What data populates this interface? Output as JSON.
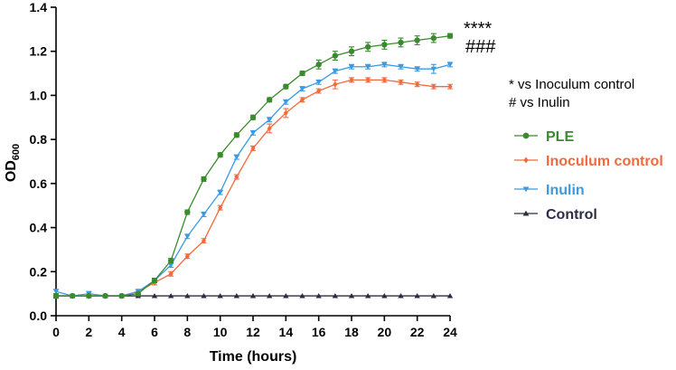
{
  "chart_data": {
    "type": "line",
    "title": "",
    "xlabel": "Time (hours)",
    "ylabel_main": "OD",
    "ylabel_sub": "600",
    "xlim": [
      0,
      24
    ],
    "ylim": [
      0.0,
      1.4
    ],
    "xticks": [
      0,
      2,
      4,
      6,
      8,
      10,
      12,
      14,
      16,
      18,
      20,
      22,
      24
    ],
    "xtick_labels": [
      "0",
      "2",
      "4",
      "6",
      "8",
      "10",
      "12",
      "14",
      "16",
      "18",
      "20",
      "22",
      "24"
    ],
    "yticks": [
      0.0,
      0.2,
      0.4,
      0.6,
      0.8,
      1.0,
      1.2,
      1.4
    ],
    "ytick_labels": [
      "0.0",
      "0.2",
      "0.4",
      "0.6",
      "0.8",
      "1.0",
      "1.2",
      "1.4"
    ],
    "x": [
      0,
      1,
      2,
      3,
      4,
      5,
      6,
      7,
      8,
      9,
      10,
      11,
      12,
      13,
      14,
      15,
      16,
      17,
      18,
      19,
      20,
      21,
      22,
      23,
      24
    ],
    "series": [
      {
        "name": "PLE",
        "color": "#3a8a2e",
        "marker": "circle",
        "values": [
          0.09,
          0.09,
          0.09,
          0.09,
          0.09,
          0.1,
          0.16,
          0.25,
          0.47,
          0.62,
          0.73,
          0.82,
          0.9,
          0.98,
          1.04,
          1.1,
          1.14,
          1.18,
          1.2,
          1.22,
          1.23,
          1.24,
          1.25,
          1.26,
          1.27
        ],
        "errors": [
          0.01,
          0.0,
          0.0,
          0.0,
          0.0,
          0.0,
          0.01,
          0.01,
          0.01,
          0.01,
          0.01,
          0.01,
          0.01,
          0.01,
          0.01,
          0.01,
          0.02,
          0.02,
          0.02,
          0.02,
          0.02,
          0.02,
          0.02,
          0.02,
          0.01
        ]
      },
      {
        "name": "Inoculum control",
        "color": "#f06a3c",
        "marker": "diamond",
        "values": [
          0.09,
          0.09,
          0.09,
          0.09,
          0.09,
          0.11,
          0.15,
          0.19,
          0.27,
          0.34,
          0.49,
          0.63,
          0.76,
          0.85,
          0.92,
          0.98,
          1.02,
          1.05,
          1.07,
          1.07,
          1.07,
          1.06,
          1.05,
          1.04,
          1.04
        ],
        "errors": [
          0.01,
          0.0,
          0.0,
          0.0,
          0.0,
          0.01,
          0.01,
          0.01,
          0.01,
          0.01,
          0.01,
          0.01,
          0.01,
          0.02,
          0.02,
          0.01,
          0.01,
          0.02,
          0.01,
          0.01,
          0.01,
          0.01,
          0.01,
          0.01,
          0.01
        ]
      },
      {
        "name": "Inulin",
        "color": "#3b9ae1",
        "marker": "triangle-down",
        "values": [
          0.11,
          0.09,
          0.1,
          0.09,
          0.09,
          0.11,
          0.16,
          0.23,
          0.36,
          0.46,
          0.56,
          0.72,
          0.83,
          0.89,
          0.97,
          1.03,
          1.06,
          1.11,
          1.13,
          1.13,
          1.14,
          1.13,
          1.12,
          1.12,
          1.14
        ],
        "errors": [
          0.01,
          0.0,
          0.01,
          0.0,
          0.0,
          0.0,
          0.01,
          0.01,
          0.01,
          0.01,
          0.01,
          0.01,
          0.01,
          0.01,
          0.01,
          0.01,
          0.01,
          0.01,
          0.01,
          0.01,
          0.01,
          0.01,
          0.01,
          0.02,
          0.01
        ]
      },
      {
        "name": "Control",
        "color": "#2b2d42",
        "marker": "triangle-up",
        "values": [
          0.09,
          0.09,
          0.09,
          0.09,
          0.09,
          0.09,
          0.09,
          0.09,
          0.09,
          0.09,
          0.09,
          0.09,
          0.09,
          0.09,
          0.09,
          0.09,
          0.09,
          0.09,
          0.09,
          0.09,
          0.09,
          0.09,
          0.09,
          0.09,
          0.09
        ],
        "errors": [
          0,
          0,
          0,
          0,
          0,
          0,
          0,
          0,
          0,
          0,
          0,
          0,
          0,
          0,
          0,
          0,
          0,
          0,
          0,
          0,
          0,
          0,
          0,
          0,
          0
        ]
      }
    ],
    "legend_position": "right",
    "annotations": {
      "significance_star": "****",
      "significance_hash": "###",
      "note_star": "* vs Inoculum control",
      "note_hash": "# vs Inulin"
    }
  }
}
